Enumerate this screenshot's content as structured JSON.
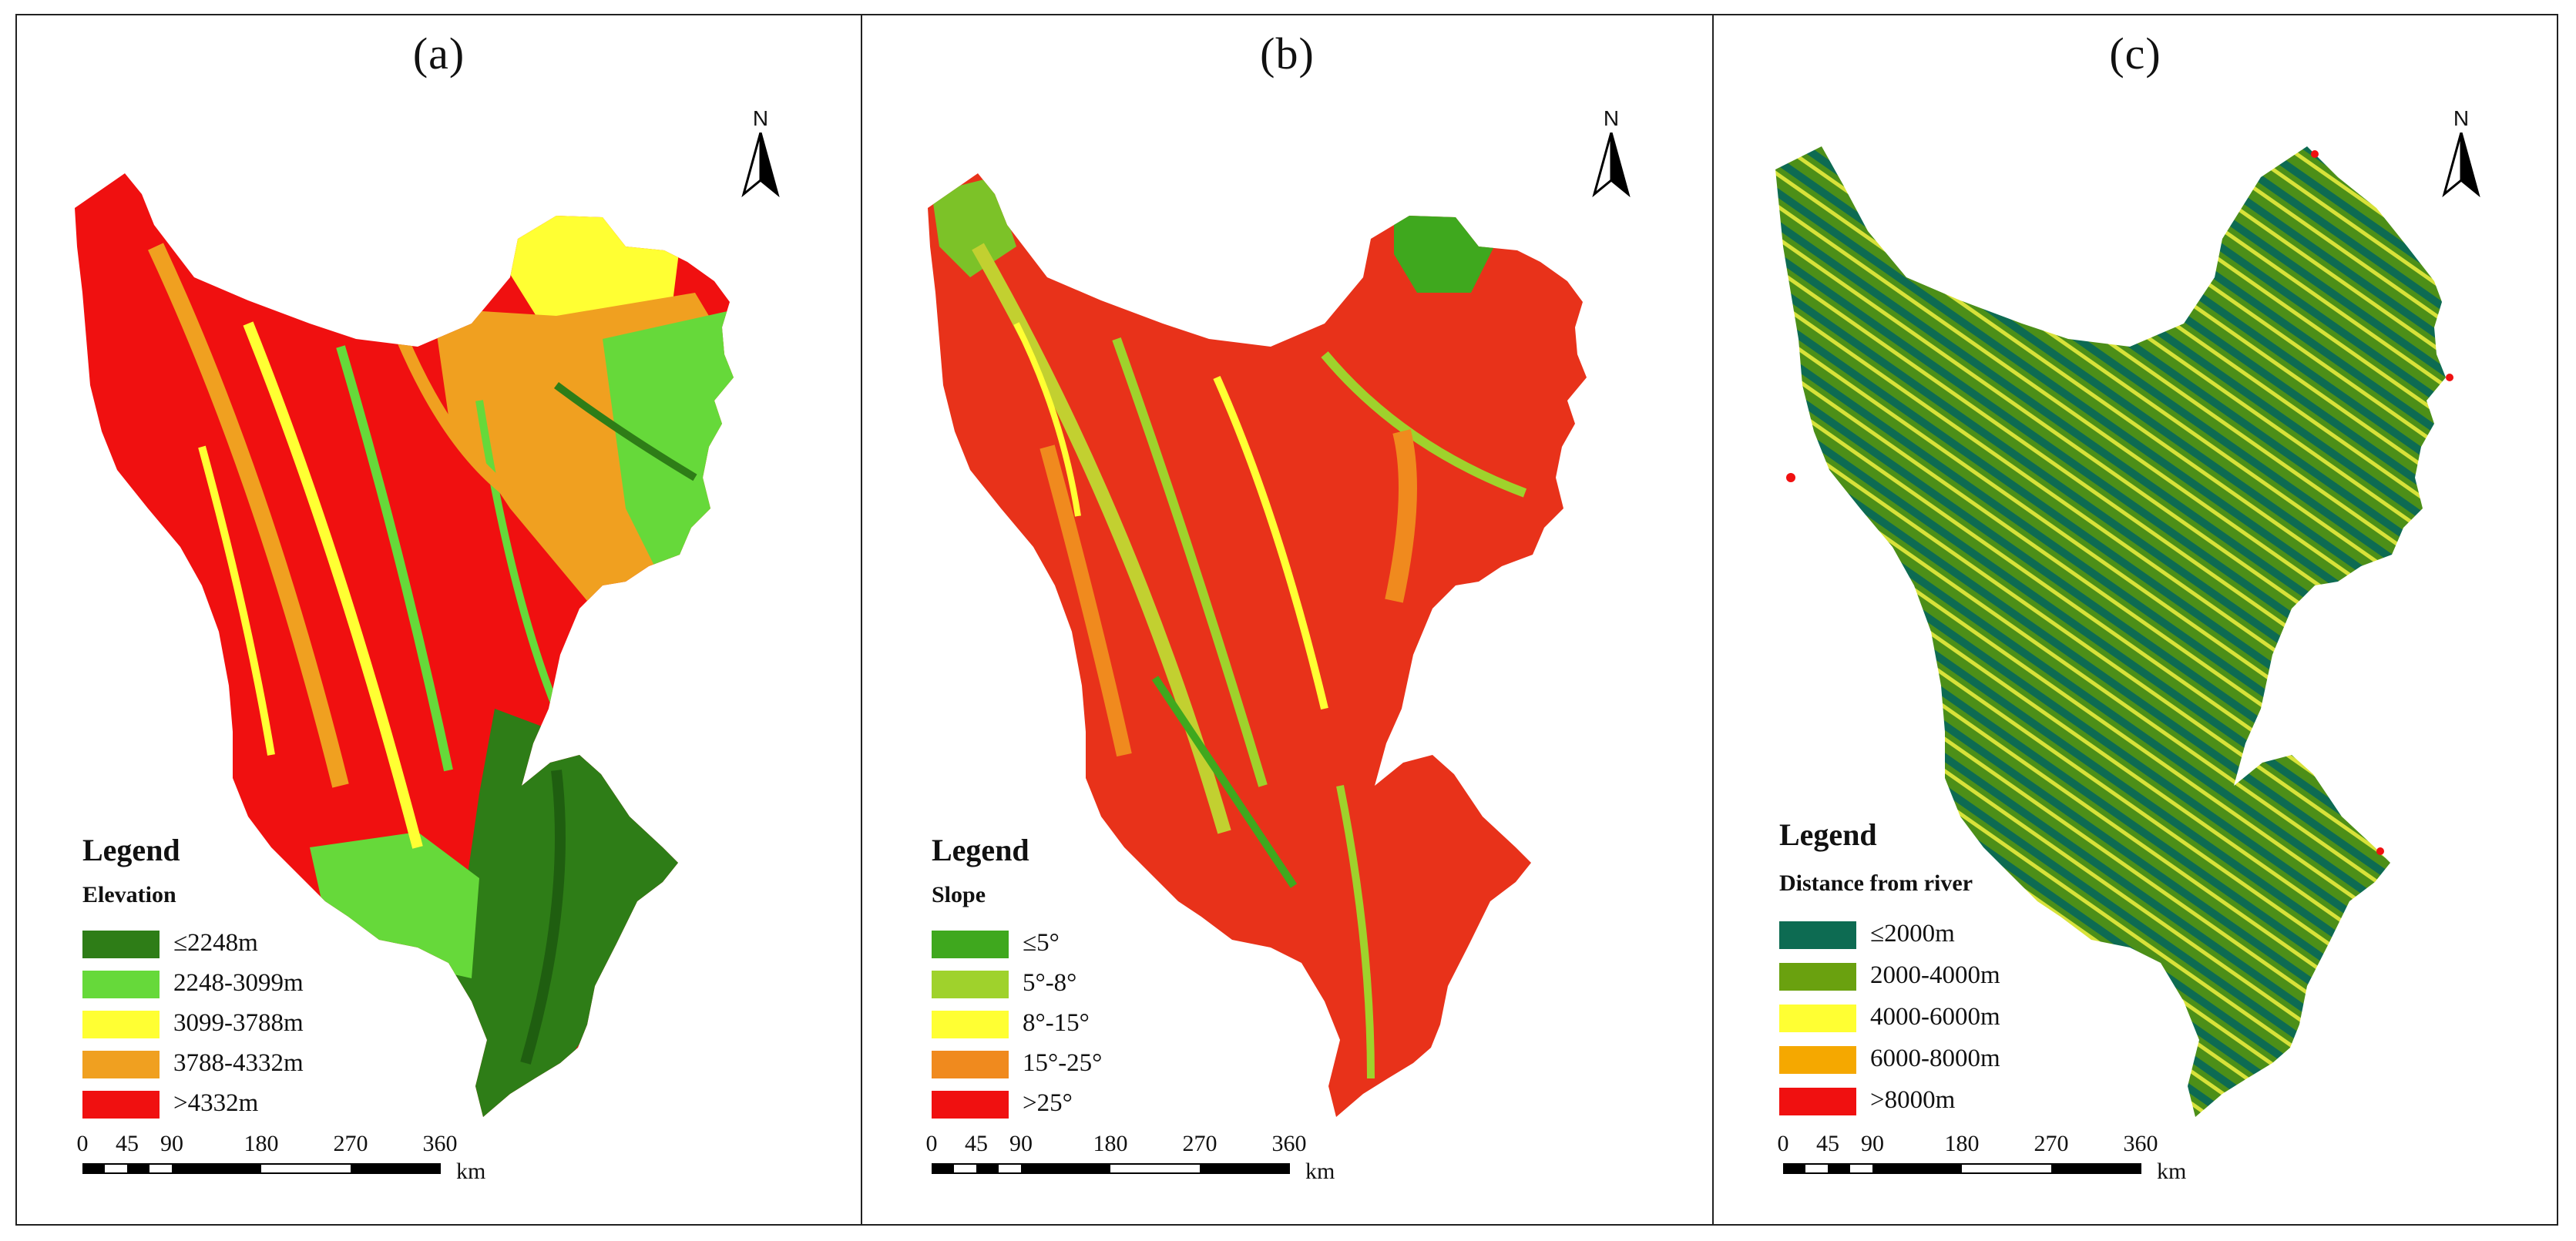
{
  "panels": [
    {
      "label": "(a)",
      "north": "N",
      "legend_heading": "Legend",
      "legend_title": "Elevation",
      "legend_items": [
        {
          "label": "≤2248m",
          "color": "#2e7d17"
        },
        {
          "label": "2248-3099m",
          "color": "#66d93a"
        },
        {
          "label": "3099-3788m",
          "color": "#ffff33"
        },
        {
          "label": "3788-4332m",
          "color": "#f0a020"
        },
        {
          "label": ">4332m",
          "color": "#f01010"
        }
      ],
      "scale_ticks": [
        "0",
        "45",
        "90",
        "180",
        "270",
        "360"
      ],
      "scale_unit": "km"
    },
    {
      "label": "(b)",
      "north": "N",
      "legend_heading": "Legend",
      "legend_title": "Slope",
      "legend_items": [
        {
          "label": "≤5°",
          "color": "#3fa81e"
        },
        {
          "label": "5°-8°",
          "color": "#9fd22c"
        },
        {
          "label": "8°-15°",
          "color": "#ffff33"
        },
        {
          "label": "15°-25°",
          "color": "#f08a1e"
        },
        {
          "label": ">25°",
          "color": "#f01010"
        }
      ],
      "scale_ticks": [
        "0",
        "45",
        "90",
        "180",
        "270",
        "360"
      ],
      "scale_unit": "km"
    },
    {
      "label": "(c)",
      "north": "N",
      "legend_heading": "Legend",
      "legend_title": "Distance from river",
      "legend_items": [
        {
          "label": "≤2000m",
          "color": "#0d6b52"
        },
        {
          "label": "2000-4000m",
          "color": "#6aa10f"
        },
        {
          "label": "4000-6000m",
          "color": "#ffff33"
        },
        {
          "label": "6000-8000m",
          "color": "#f5a800"
        },
        {
          "label": ">8000m",
          "color": "#f01010"
        }
      ],
      "scale_ticks": [
        "0",
        "45",
        "90",
        "180",
        "270",
        "360"
      ],
      "scale_unit": "km"
    }
  ]
}
